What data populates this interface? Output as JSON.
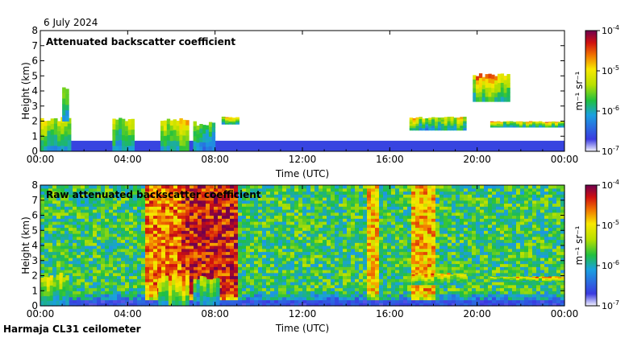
{
  "date_label": "6 July 2024",
  "footer_label": "Harmaja CL31 ceilometer",
  "chart_data": [
    {
      "type": "heatmap",
      "title": "Attenuated backscatter coefficient",
      "xlabel": "Time (UTC)",
      "ylabel": "Height (km)",
      "x_ticks": [
        "00:00",
        "04:00",
        "08:00",
        "12:00",
        "16:00",
        "20:00",
        "00:00"
      ],
      "xlim_hours": [
        0,
        24
      ],
      "ylim": [
        0,
        8
      ],
      "y_ticks": [
        0,
        1,
        2,
        3,
        4,
        5,
        6,
        7,
        8
      ],
      "colorbar": {
        "label": "m⁻¹ sr⁻¹",
        "scale": "log",
        "ticks": [
          "10",
          "10",
          "10",
          "10"
        ],
        "tick_exponents": [
          "-7",
          "-6",
          "-5",
          "-4"
        ],
        "range": [
          1e-07,
          0.0001
        ]
      },
      "features": [
        {
          "name": "surface-layer",
          "t_start": 0.0,
          "t_end": 24.0,
          "h_bottom": 0.0,
          "h_top": 0.7,
          "level": 0.05
        },
        {
          "name": "morning-low-cloud",
          "t_start": 0.0,
          "t_end": 1.4,
          "h_bottom": 0.0,
          "h_top": 2.3,
          "level": 0.75
        },
        {
          "name": "early-plume",
          "t_start": 1.0,
          "t_end": 1.3,
          "h_bottom": 2.0,
          "h_top": 4.5,
          "level": 0.65
        },
        {
          "name": "cloud-0330",
          "t_start": 3.3,
          "t_end": 4.3,
          "h_bottom": 0.0,
          "h_top": 2.3,
          "level": 0.7
        },
        {
          "name": "cloud-0500",
          "t_start": 5.5,
          "t_end": 6.8,
          "h_bottom": 0.0,
          "h_top": 2.2,
          "level": 0.85
        },
        {
          "name": "cloud-0730",
          "t_start": 7.0,
          "t_end": 8.0,
          "h_bottom": 0.0,
          "h_top": 2.0,
          "level": 0.55
        },
        {
          "name": "cloud-base-0845",
          "t_start": 8.3,
          "t_end": 9.1,
          "h_bottom": 1.8,
          "h_top": 2.3,
          "level": 0.8
        },
        {
          "name": "layer-1700-1930",
          "t_start": 16.9,
          "t_end": 19.5,
          "h_bottom": 1.4,
          "h_top": 2.3,
          "level": 0.75
        },
        {
          "name": "layer-2030-2400",
          "t_start": 20.6,
          "t_end": 24.0,
          "h_bottom": 1.6,
          "h_top": 2.0,
          "level": 0.8
        },
        {
          "name": "high-aerosol-2000",
          "t_start": 19.8,
          "t_end": 21.5,
          "h_bottom": 3.3,
          "h_top": 5.2,
          "level": 0.85
        }
      ]
    },
    {
      "type": "heatmap",
      "title": "Raw attenuated backscatter coefficient",
      "xlabel": "Time (UTC)",
      "ylabel": "Height (km)",
      "x_ticks": [
        "00:00",
        "04:00",
        "08:00",
        "12:00",
        "16:00",
        "20:00",
        "00:00"
      ],
      "xlim_hours": [
        0,
        24
      ],
      "ylim": [
        0,
        8
      ],
      "y_ticks": [
        0,
        1,
        2,
        3,
        4,
        5,
        6,
        7,
        8
      ],
      "colorbar": {
        "label": "m⁻¹ sr⁻¹",
        "scale": "log",
        "ticks": [
          "10",
          "10",
          "10",
          "10"
        ],
        "tick_exponents": [
          "-7",
          "-6",
          "-5",
          "-4"
        ],
        "range": [
          1e-07,
          0.0001
        ]
      },
      "noisy_background": true,
      "noise_bands": [
        {
          "t_start": 4.8,
          "t_end": 6.5,
          "level": 0.78
        },
        {
          "t_start": 6.5,
          "t_end": 9.0,
          "level": 0.88
        },
        {
          "t_start": 15.0,
          "t_end": 15.6,
          "level": 0.7
        },
        {
          "t_start": 17.0,
          "t_end": 18.1,
          "level": 0.72
        }
      ],
      "features": [
        {
          "name": "morning-low-cloud",
          "t_start": 0.0,
          "t_end": 1.3,
          "h_bottom": 0.0,
          "h_top": 2.2,
          "level": 0.8
        },
        {
          "name": "cloud-0500",
          "t_start": 5.4,
          "t_end": 6.8,
          "h_bottom": 0.0,
          "h_top": 2.1,
          "level": 0.9
        },
        {
          "name": "cloud-0730",
          "t_start": 7.0,
          "t_end": 8.2,
          "h_bottom": 0.0,
          "h_top": 2.0,
          "level": 0.65
        },
        {
          "name": "layer-1700-1930",
          "t_start": 17.0,
          "t_end": 19.5,
          "h_bottom": 1.4,
          "h_top": 2.2,
          "level": 0.85
        },
        {
          "name": "layer-2030-2400",
          "t_start": 20.6,
          "t_end": 24.0,
          "h_bottom": 1.6,
          "h_top": 1.95,
          "level": 0.88
        }
      ]
    }
  ]
}
